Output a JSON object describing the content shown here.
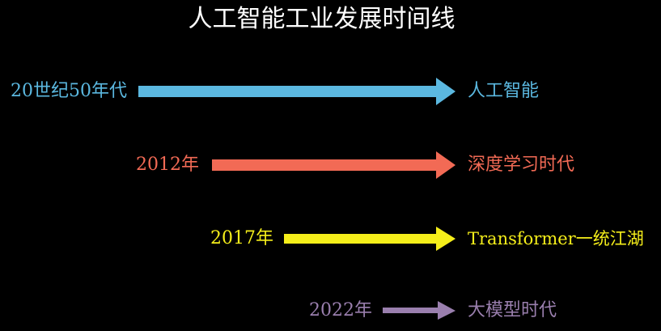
{
  "title": "人工智能工业发展时间线",
  "timeline": [
    {
      "start": "20世纪50年代",
      "end": "人工智能",
      "color": "#5bb8e0"
    },
    {
      "start": "2012年",
      "end": "深度学习时代",
      "color": "#f26a55"
    },
    {
      "start": "2017年",
      "end": "Transformer一统江湖",
      "color": "#f5ee1a"
    },
    {
      "start": "2022年",
      "end": "大模型时代",
      "color": "#9a7fae"
    }
  ]
}
